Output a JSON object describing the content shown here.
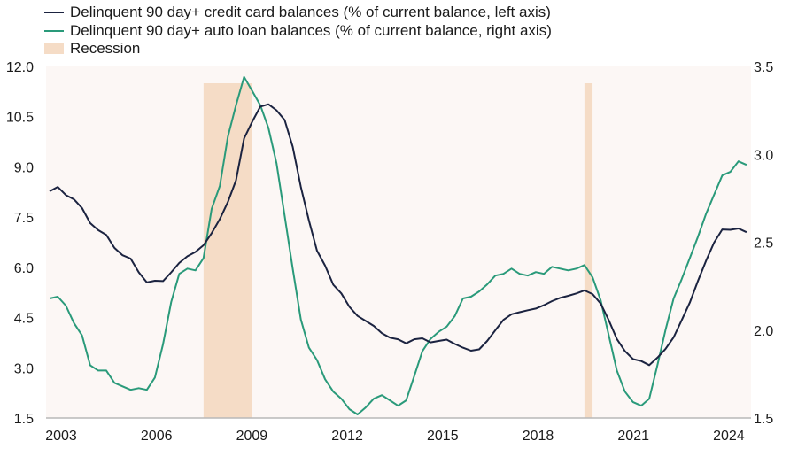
{
  "colors": {
    "credit_card": "#1b2340",
    "auto_loan": "#2a9a7a",
    "recession": "#f5dcc6",
    "plot_bg": "#fcf7f5",
    "axis": "#b8b8b8"
  },
  "legend": [
    {
      "label": "Delinquent 90 day+ credit card balances (% of current balance, left axis)",
      "kind": "line",
      "color": "#1b2340"
    },
    {
      "label": "Delinquent 90 day+ auto loan balances (% of current balance, right axis)",
      "kind": "line",
      "color": "#2a9a7a"
    },
    {
      "label": "Recession",
      "kind": "box",
      "color": "#f5dcc6"
    }
  ],
  "chart_data": {
    "type": "line",
    "title": "",
    "frequency": "quarterly",
    "x_start": "2003-Q1",
    "x_end": "2024-Q3",
    "x_ticks": [
      "2003",
      "2006",
      "2009",
      "2012",
      "2015",
      "2018",
      "2021",
      "2024"
    ],
    "y_left": {
      "ylim": [
        1.5,
        12.0
      ],
      "ticks": [
        "12.0",
        "10.5",
        "9.0",
        "7.5",
        "6.0",
        "4.5",
        "3.0",
        "1.5"
      ]
    },
    "y_right": {
      "ylim": [
        1.5,
        3.5
      ],
      "ticks": [
        "3.5",
        "3.0",
        "2.5",
        "2.0",
        "1.5"
      ]
    },
    "grid": false,
    "legend_position": "top-left",
    "recessions": [
      [
        "2007-Q4",
        "2009-Q2"
      ],
      [
        "2019-Q3",
        "2019-Q4"
      ]
    ],
    "series": [
      {
        "name": "Delinquent 90 day+ credit card balances (% of current balance, left axis)",
        "axis": "left",
        "values": [
          8.27,
          8.4,
          8.16,
          8.03,
          7.77,
          7.32,
          7.11,
          6.97,
          6.58,
          6.36,
          6.26,
          5.85,
          5.55,
          5.6,
          5.59,
          5.85,
          6.13,
          6.33,
          6.46,
          6.66,
          7.02,
          7.44,
          7.95,
          8.6,
          9.85,
          10.35,
          10.8,
          10.87,
          10.69,
          10.4,
          9.6,
          8.4,
          7.4,
          6.5,
          6.05,
          5.48,
          5.22,
          4.82,
          4.55,
          4.4,
          4.25,
          4.03,
          3.9,
          3.85,
          3.73,
          3.85,
          3.88,
          3.76,
          3.8,
          3.84,
          3.71,
          3.6,
          3.51,
          3.55,
          3.8,
          4.12,
          4.43,
          4.6,
          4.66,
          4.72,
          4.77,
          4.87,
          4.99,
          5.09,
          5.15,
          5.22,
          5.31,
          5.2,
          4.92,
          4.42,
          3.86,
          3.5,
          3.26,
          3.2,
          3.08,
          3.3,
          3.56,
          3.91,
          4.42,
          4.95,
          5.59,
          6.19,
          6.74,
          7.13,
          7.12,
          7.16,
          7.05
        ]
      },
      {
        "name": "Delinquent 90 day+ auto loan balances (% of current balance, right axis)",
        "axis": "right",
        "values": [
          2.18,
          2.19,
          2.14,
          2.04,
          1.97,
          1.8,
          1.77,
          1.77,
          1.7,
          1.68,
          1.66,
          1.67,
          1.66,
          1.73,
          1.92,
          2.16,
          2.32,
          2.35,
          2.34,
          2.41,
          2.69,
          2.82,
          3.1,
          3.28,
          3.44,
          3.36,
          3.28,
          3.15,
          2.95,
          2.65,
          2.35,
          2.06,
          1.9,
          1.83,
          1.72,
          1.65,
          1.61,
          1.55,
          1.52,
          1.56,
          1.61,
          1.63,
          1.6,
          1.57,
          1.6,
          1.74,
          1.88,
          1.95,
          1.99,
          2.02,
          2.08,
          2.18,
          2.19,
          2.22,
          2.26,
          2.31,
          2.32,
          2.35,
          2.32,
          2.31,
          2.33,
          2.32,
          2.36,
          2.35,
          2.34,
          2.35,
          2.37,
          2.3,
          2.17,
          1.97,
          1.77,
          1.65,
          1.59,
          1.57,
          1.61,
          1.8,
          2.0,
          2.18,
          2.29,
          2.41,
          2.53,
          2.66,
          2.77,
          2.88,
          2.9,
          2.96,
          2.94
        ]
      }
    ]
  }
}
